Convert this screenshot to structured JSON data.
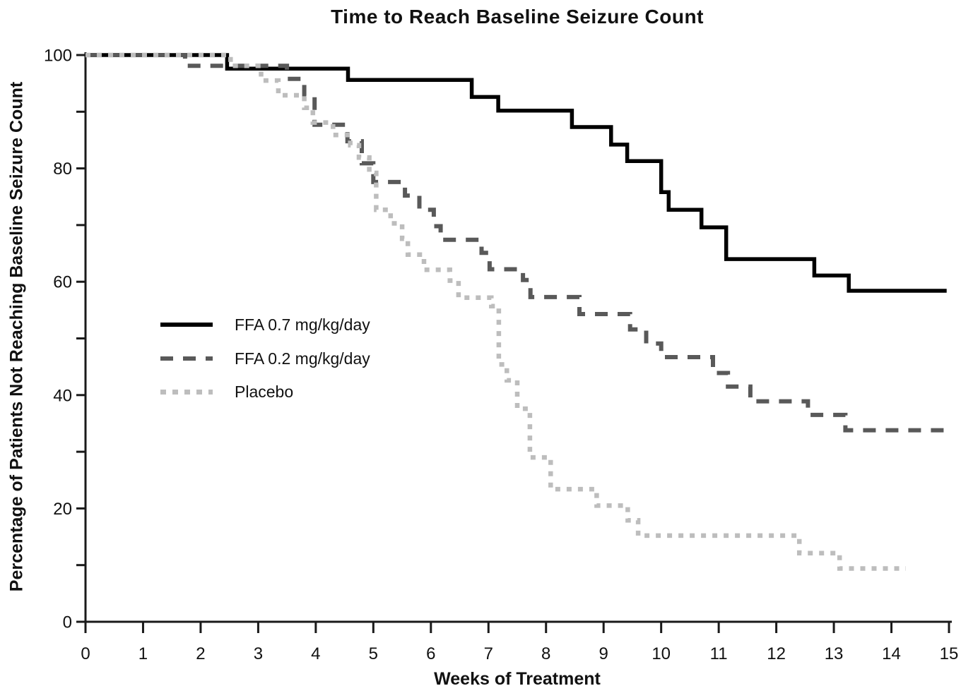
{
  "chart": {
    "title": "Time to Reach Baseline Seizure Count",
    "x_axis": {
      "label": "Weeks of Treatment",
      "min": 0,
      "max": 15,
      "ticks": [
        0,
        1,
        2,
        3,
        4,
        5,
        6,
        7,
        8,
        9,
        10,
        11,
        12,
        13,
        14,
        15
      ]
    },
    "y_axis": {
      "label": "Percentage of Patients Not Reaching Baseline Seizure Count",
      "min": 0,
      "max": 100,
      "major_ticks": [
        0,
        20,
        40,
        60,
        80,
        100
      ],
      "minor_ticks": [
        10,
        30,
        50,
        70,
        90
      ]
    },
    "legend": {
      "items": [
        {
          "label": "FFA 0.7 mg/kg/day",
          "style": "solid",
          "color": "#000000"
        },
        {
          "label": "FFA 0.2 mg/kg/day",
          "style": "dashed",
          "color": "#595959"
        },
        {
          "label": "Placebo",
          "style": "dotted",
          "color": "#bdbdbd"
        }
      ]
    }
  },
  "chart_data": {
    "type": "line",
    "subtype": "kaplan-meier-step",
    "title": "Time to Reach Baseline Seizure Count",
    "xlabel": "Weeks of Treatment",
    "ylabel": "Percentage of Patients Not Reaching Baseline Seizure Count",
    "xlim": [
      0,
      15
    ],
    "ylim": [
      0,
      100
    ],
    "grid": false,
    "legend_position": "inside-left",
    "series": [
      {
        "name": "FFA 0.7 mg/kg/day",
        "style": "solid",
        "color": "#000000",
        "start_pct": 100,
        "steps": [
          [
            2.46,
            97.6
          ],
          [
            4.56,
            95.6
          ],
          [
            6.71,
            92.6
          ],
          [
            7.17,
            90.2
          ],
          [
            8.45,
            87.3
          ],
          [
            9.13,
            84.2
          ],
          [
            9.41,
            81.3
          ],
          [
            10.0,
            75.8
          ],
          [
            10.13,
            72.7
          ],
          [
            10.7,
            69.6
          ],
          [
            11.13,
            64.0
          ],
          [
            12.66,
            61.1
          ],
          [
            13.26,
            58.4
          ]
        ],
        "end_week": 14.96
      },
      {
        "name": "FFA 0.2 mg/kg/day",
        "style": "dashed",
        "color": "#595959",
        "start_pct": 100,
        "steps": [
          [
            1.73,
            98.1
          ],
          [
            3.5,
            95.8
          ],
          [
            3.8,
            92.8
          ],
          [
            3.98,
            87.7
          ],
          [
            4.55,
            84.8
          ],
          [
            4.8,
            80.9
          ],
          [
            5.0,
            77.6
          ],
          [
            5.55,
            75.2
          ],
          [
            5.8,
            72.7
          ],
          [
            6.05,
            69.8
          ],
          [
            6.17,
            67.4
          ],
          [
            6.88,
            65.1
          ],
          [
            7.02,
            62.2
          ],
          [
            7.6,
            60.3
          ],
          [
            7.73,
            57.3
          ],
          [
            8.58,
            54.3
          ],
          [
            9.46,
            51.6
          ],
          [
            9.74,
            49.1
          ],
          [
            10.0,
            46.7
          ],
          [
            10.9,
            43.9
          ],
          [
            11.16,
            41.5
          ],
          [
            11.55,
            38.9
          ],
          [
            12.55,
            36.5
          ],
          [
            13.2,
            33.8
          ]
        ],
        "end_week": 15.0
      },
      {
        "name": "Placebo",
        "style": "dotted",
        "color": "#bdbdbd",
        "start_pct": 100,
        "steps": [
          [
            2.52,
            98.1
          ],
          [
            3.05,
            95.5
          ],
          [
            3.35,
            92.9
          ],
          [
            3.8,
            90.7
          ],
          [
            3.95,
            88.1
          ],
          [
            4.3,
            85.9
          ],
          [
            4.6,
            84.1
          ],
          [
            4.75,
            81.9
          ],
          [
            4.93,
            79.2
          ],
          [
            5.05,
            72.7
          ],
          [
            5.3,
            70.3
          ],
          [
            5.5,
            67.6
          ],
          [
            5.6,
            64.8
          ],
          [
            5.88,
            62.1
          ],
          [
            6.33,
            60.2
          ],
          [
            6.48,
            57.2
          ],
          [
            7.05,
            55.7
          ],
          [
            7.18,
            45.4
          ],
          [
            7.32,
            42.6
          ],
          [
            7.5,
            37.6
          ],
          [
            7.72,
            29.0
          ],
          [
            8.08,
            23.4
          ],
          [
            8.88,
            20.5
          ],
          [
            9.42,
            17.9
          ],
          [
            9.6,
            15.2
          ],
          [
            12.4,
            12.1
          ],
          [
            13.1,
            9.4
          ]
        ],
        "end_week": 14.25
      }
    ]
  }
}
